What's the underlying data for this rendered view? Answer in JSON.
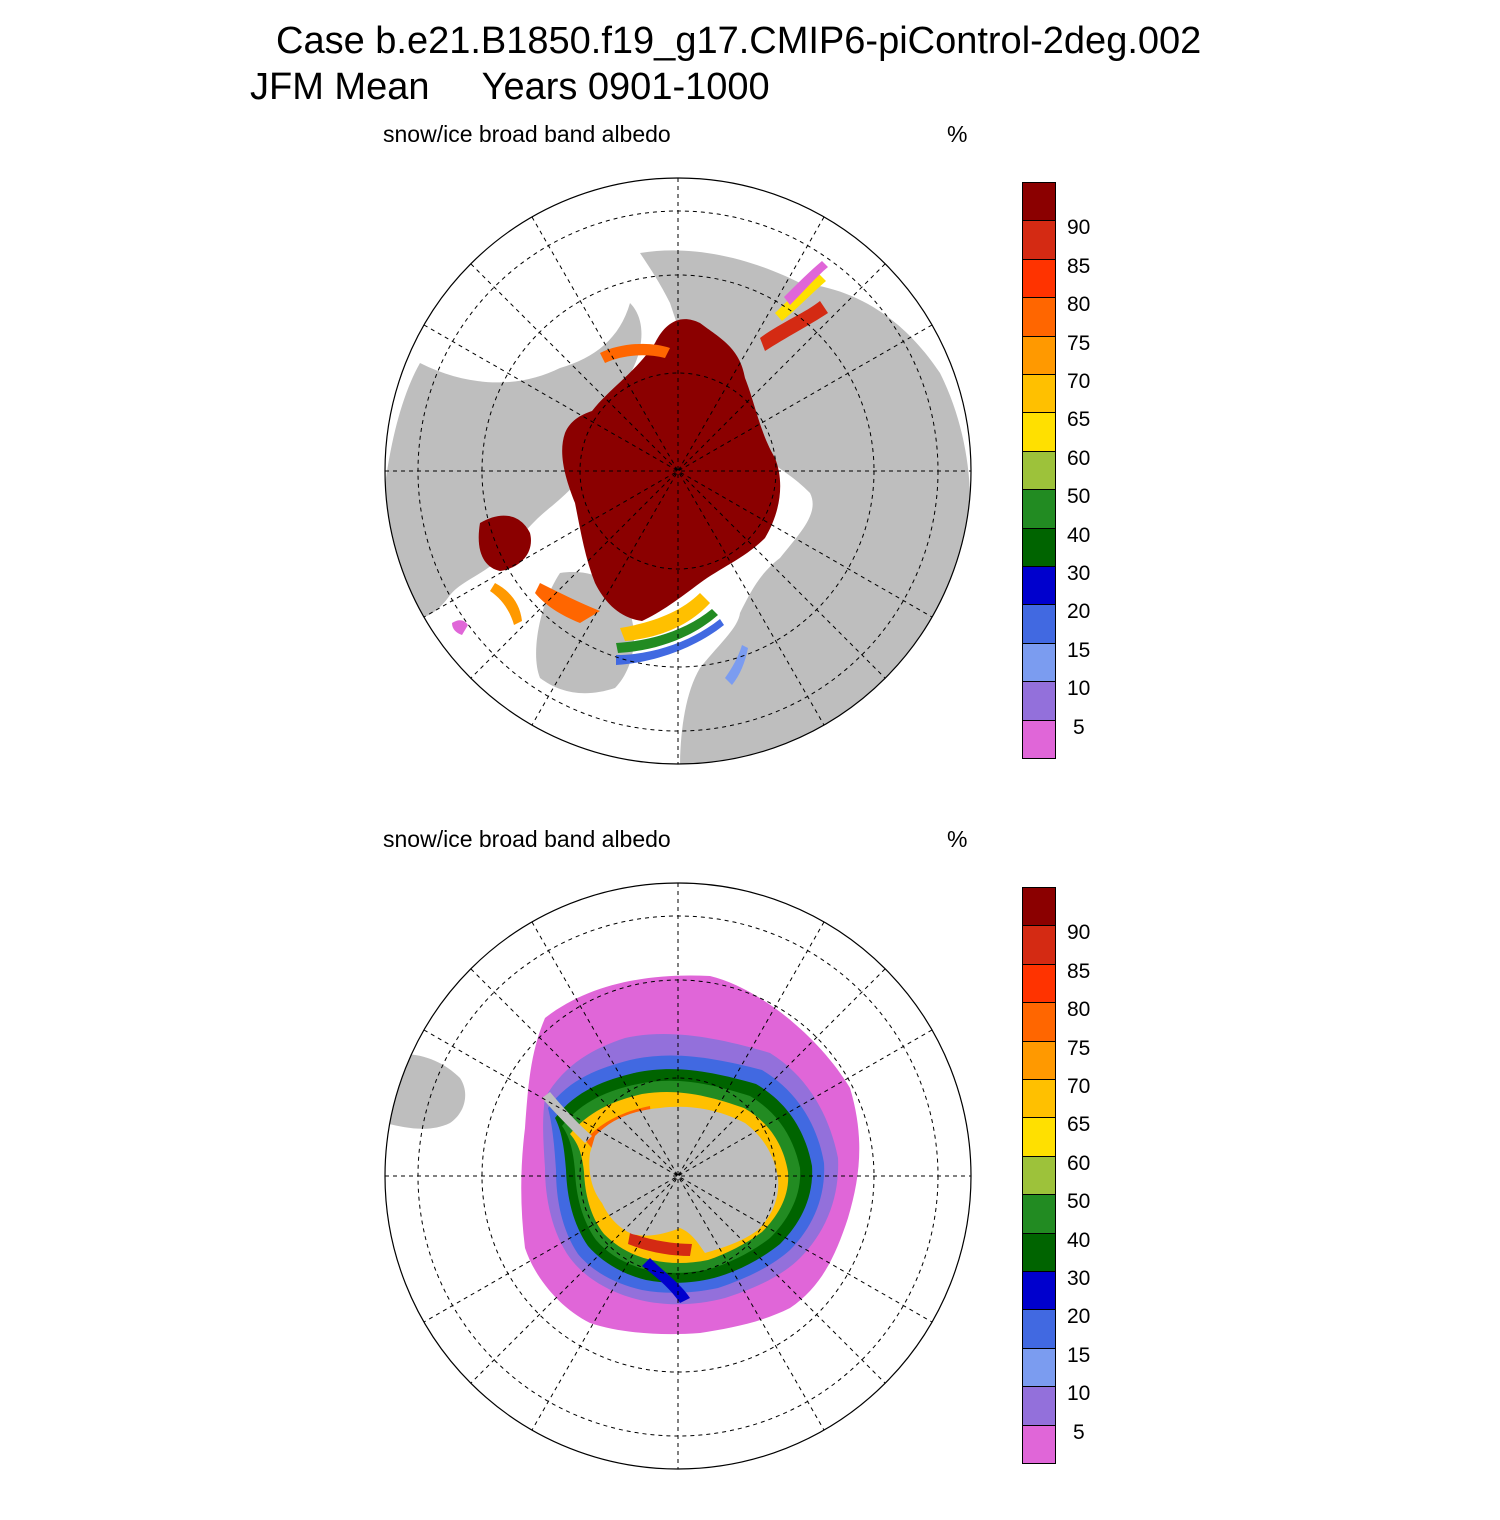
{
  "title": {
    "line1": "Case b.e21.B1850.f19_g17.CMIP6-piControl-2deg.002",
    "line2": "JFM Mean     Years 0901-1000"
  },
  "colors": {
    "land": "#bebebe",
    "ocean": "#ffffff",
    "grid": "#000000"
  },
  "colorbar": {
    "levels": [
      "90",
      "85",
      "80",
      "75",
      "70",
      "65",
      "60",
      "50",
      "40",
      "30",
      "20",
      "15",
      "10",
      "5"
    ],
    "colors": [
      "#8b0000",
      "#d42a13",
      "#ff3300",
      "#ff6600",
      "#ff9900",
      "#ffc000",
      "#ffe000",
      "#9dc23a",
      "#228b22",
      "#006400",
      "#0000cd",
      "#4169e1",
      "#7b9cf0",
      "#9370db",
      "#e066d8"
    ]
  },
  "panels": {
    "north": {
      "var_label": "snow/ice broad band albedo",
      "units": "%",
      "hemisphere": "Northern Hemisphere",
      "chart_data": {
        "type": "heatmap",
        "projection": "polar stereographic",
        "field": "snow/ice broad band albedo",
        "units": "%",
        "color_levels": [
          5,
          10,
          15,
          20,
          30,
          40,
          50,
          60,
          65,
          70,
          75,
          80,
          85,
          90
        ],
        "summary": "Central Arctic pack > 90%; narrow gradient rim in Labrador/Hudson, Greenland-Barents edge, Okhotsk and Bering seas"
      }
    },
    "south": {
      "var_label": "snow/ice broad band albedo",
      "units": "%",
      "hemisphere": "Southern Hemisphere",
      "chart_data": {
        "type": "heatmap",
        "projection": "polar stereographic",
        "field": "snow/ice broad band albedo",
        "units": "%",
        "color_levels": [
          5,
          10,
          15,
          20,
          30,
          40,
          50,
          60,
          65,
          70,
          75,
          80,
          85,
          90
        ],
        "summary": "Ring of low-albedo sea ice (5-30%) around Antarctica; high values (65-85%) in Weddell Sea and coastal margins"
      }
    }
  }
}
